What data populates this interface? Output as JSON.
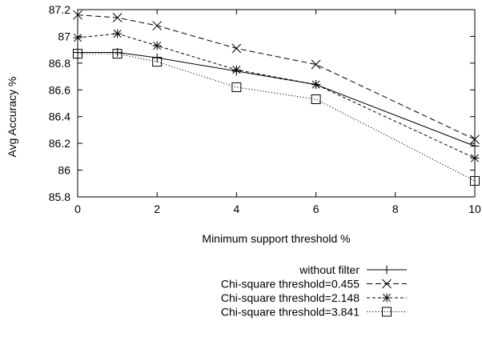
{
  "chart_data": {
    "type": "line",
    "xlabel": "Minimum support threshold %",
    "ylabel": "Avg Accuracy %",
    "xlim": [
      0,
      10
    ],
    "ylim": [
      85.8,
      87.2
    ],
    "x_ticks": [
      0,
      2,
      4,
      6,
      8,
      10
    ],
    "y_ticks": [
      85.8,
      86,
      86.2,
      86.4,
      86.6,
      86.8,
      87,
      87.2
    ],
    "x_tick_labels": [
      "0",
      "2",
      "4",
      "6",
      "8",
      "10"
    ],
    "y_tick_labels": [
      "85.8",
      "86",
      "86.2",
      "86.4",
      "86.6",
      "86.8",
      "87",
      "87.2"
    ],
    "grid": false,
    "legend_position": "below-right",
    "x": [
      0,
      1,
      2,
      4,
      6,
      10
    ],
    "series": [
      {
        "name": "without filter",
        "marker": "plus",
        "dash": "solid",
        "values": [
          86.88,
          86.88,
          86.84,
          86.74,
          86.64,
          86.18
        ]
      },
      {
        "name": "Chi-square threshold=0.455",
        "marker": "cross",
        "dash": "dashed",
        "values": [
          87.16,
          87.14,
          87.08,
          86.91,
          86.79,
          86.23
        ]
      },
      {
        "name": "Chi-square threshold=2.148",
        "marker": "star",
        "dash": "shortdash",
        "values": [
          86.99,
          87.02,
          86.93,
          86.75,
          86.64,
          86.09
        ]
      },
      {
        "name": "Chi-square threshold=3.841",
        "marker": "square",
        "dash": "dotted",
        "values": [
          86.87,
          86.87,
          86.81,
          86.62,
          86.53,
          85.92
        ]
      }
    ]
  }
}
